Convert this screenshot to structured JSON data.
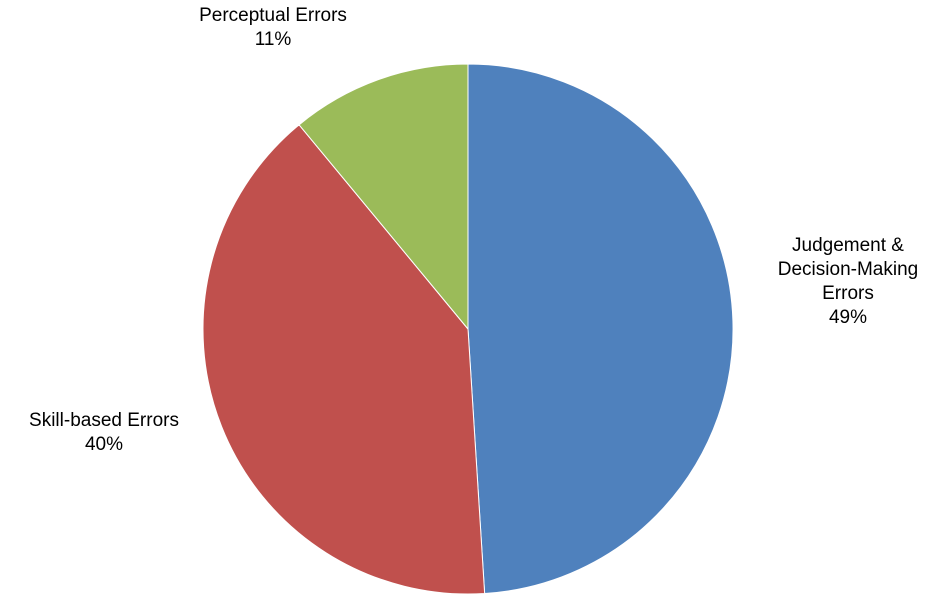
{
  "chart_data": {
    "type": "pie",
    "title": "",
    "start_angle_deg": 0,
    "direction": "clockwise",
    "slices": [
      {
        "label_lines": [
          "Judgement &",
          "Decision-Making",
          "Errors"
        ],
        "percent_label": "49%",
        "value": 49,
        "color": "#4f81bd"
      },
      {
        "label_lines": [
          "Skill-based Errors"
        ],
        "percent_label": "40%",
        "value": 40,
        "color": "#c0504d"
      },
      {
        "label_lines": [
          "Perceptual Errors"
        ],
        "percent_label": "11%",
        "value": 11,
        "color": "#9bbb59"
      }
    ]
  }
}
